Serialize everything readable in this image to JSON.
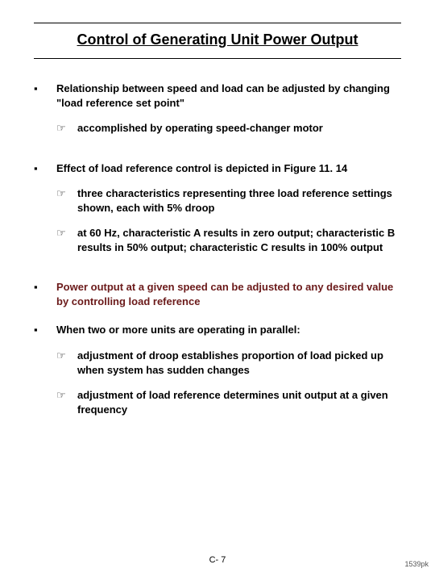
{
  "title": "Control of Generating Unit Power Output",
  "accent_color": "#6b1a1a",
  "text_color": "#000000",
  "bullet_glyph": "▪",
  "sub_glyph": "☞",
  "bullets": [
    {
      "text": "Relationship between speed and load can be adjusted by changing \"load reference set point\"",
      "accent": false,
      "subs": [
        {
          "text": "accomplished by operating speed-changer motor"
        }
      ]
    },
    {
      "text": "Effect of load reference control is depicted in Figure 11. 14",
      "accent": false,
      "subs": [
        {
          "text": "three characteristics representing three load reference settings shown, each with 5% droop"
        },
        {
          "text": "at 60 Hz, characteristic A results in zero output; characteristic B results in 50% output; characteristic C results in 100% output"
        }
      ]
    },
    {
      "text": "Power output at a given speed can be adjusted to any desired value by controlling load reference",
      "accent": true,
      "subs": []
    },
    {
      "text": "When two or more units are operating in parallel:",
      "accent": false,
      "subs": [
        {
          "text": "adjustment of droop establishes proportion of load picked up when system has sudden changes"
        },
        {
          "text": "adjustment of load reference determines unit output at a given frequency"
        }
      ]
    }
  ],
  "page_number": "C- 7",
  "watermark": "1539pk"
}
